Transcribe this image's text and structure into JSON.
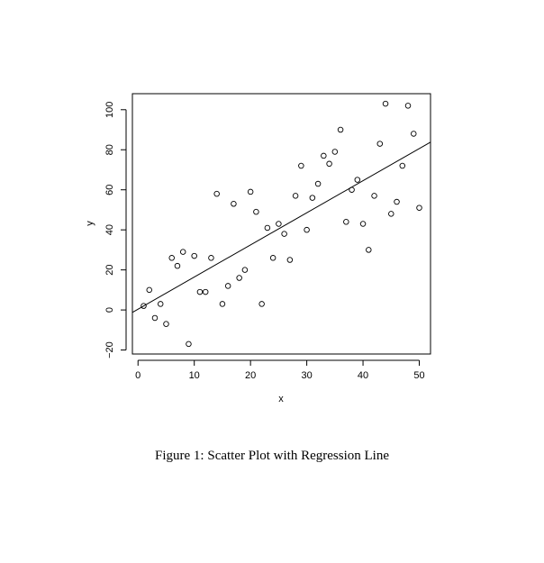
{
  "figure": {
    "caption": "Figure 1: Scatter Plot with Regression Line"
  },
  "chart_data": {
    "type": "scatter",
    "title": "",
    "xlabel": "x",
    "ylabel": "y",
    "xlim": [
      -1,
      52
    ],
    "ylim": [
      -22,
      108
    ],
    "xticks": [
      0,
      10,
      20,
      30,
      40,
      50
    ],
    "yticks": [
      -20,
      0,
      20,
      40,
      60,
      80,
      100
    ],
    "xtick_labels": [
      "0",
      "10",
      "20",
      "30",
      "40",
      "50"
    ],
    "ytick_labels": [
      "−20",
      "0",
      "20",
      "40",
      "60",
      "80",
      "100"
    ],
    "grid": false,
    "series": [
      {
        "marker": "open-circle",
        "x": [
          1,
          2,
          3,
          4,
          5,
          6,
          7,
          8,
          9,
          10,
          11,
          12,
          13,
          14,
          15,
          16,
          17,
          18,
          19,
          20,
          21,
          22,
          23,
          24,
          25,
          26,
          27,
          28,
          29,
          30,
          31,
          32,
          33,
          34,
          35,
          36,
          37,
          38,
          39,
          40,
          41,
          42,
          43,
          44,
          45,
          46,
          47,
          48,
          49,
          50
        ],
        "y": [
          2,
          10,
          -4,
          3,
          -7,
          26,
          22,
          29,
          -17,
          27,
          9,
          9,
          26,
          58,
          3,
          12,
          53,
          16,
          20,
          59,
          49,
          3,
          41,
          26,
          43,
          38,
          25,
          57,
          72,
          40,
          56,
          63,
          77,
          73,
          79,
          90,
          44,
          60,
          65,
          43,
          30,
          57,
          83,
          103,
          48,
          54,
          72,
          102,
          88,
          51
        ]
      }
    ],
    "regression_line": {
      "x": [
        -1,
        52
      ],
      "y": [
        -1.2,
        83.8
      ]
    }
  }
}
